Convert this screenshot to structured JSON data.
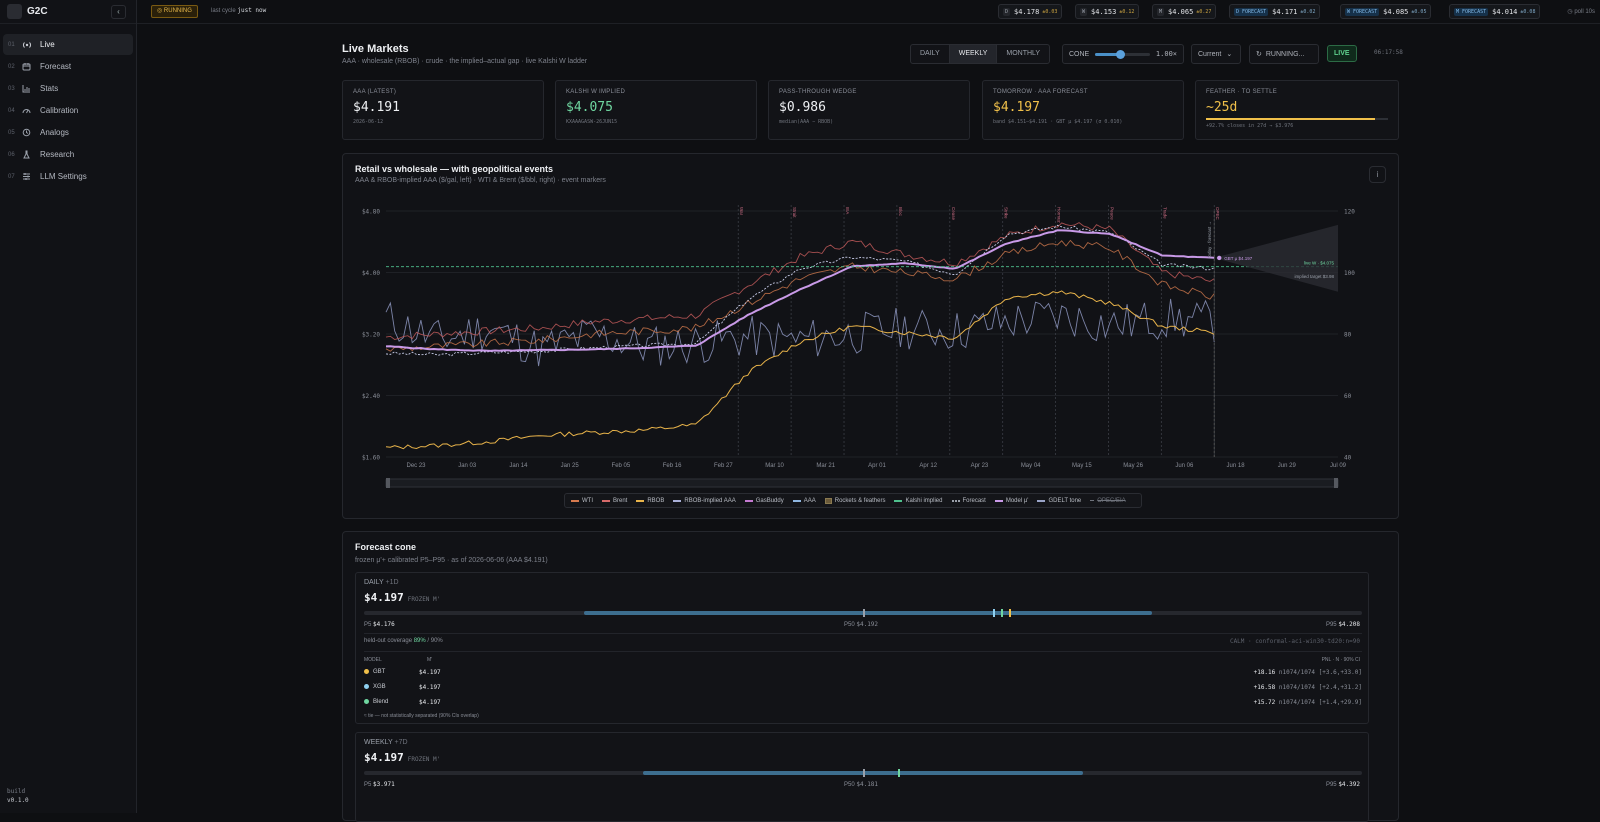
{
  "app": {
    "name": "G2C",
    "collapse_label": "‹",
    "build_label": "build",
    "version": "v0.1.0"
  },
  "nav": [
    {
      "num": "01",
      "label": "Live",
      "icon": "broadcast-icon"
    },
    {
      "num": "02",
      "label": "Forecast",
      "icon": "calendar-icon"
    },
    {
      "num": "03",
      "label": "Stats",
      "icon": "bar-chart-icon"
    },
    {
      "num": "04",
      "label": "Calibration",
      "icon": "gauge-icon"
    },
    {
      "num": "05",
      "label": "Analogs",
      "icon": "history-icon"
    },
    {
      "num": "06",
      "label": "Research",
      "icon": "flask-icon"
    },
    {
      "num": "07",
      "label": "LLM Settings",
      "icon": "sliders-icon"
    }
  ],
  "topbar": {
    "status": "RUNNING",
    "last_cycle_label": "last cycle",
    "last_cycle_value": "just now",
    "chips": [
      {
        "key": "D",
        "value": "$4.178",
        "delta": "±0.03"
      },
      {
        "key": "W",
        "value": "$4.153",
        "delta": "±0.12"
      },
      {
        "key": "M",
        "value": "$4.065",
        "delta": "±0.27"
      },
      {
        "key": "D FORECAST",
        "value": "$4.171",
        "delta": "±0.02"
      },
      {
        "key": "W FORECAST",
        "value": "$4.085",
        "delta": "±0.05"
      },
      {
        "key": "M FORECAST",
        "value": "$4.014",
        "delta": "±0.08"
      }
    ],
    "poll": "poll 10s"
  },
  "header": {
    "title": "Live Markets",
    "subtitle": "AAA · wholesale (RBOB) · crude · the implied–actual gap · live Kalshi W ladder",
    "modes": [
      "DAILY",
      "WEEKLY",
      "MONTHLY"
    ],
    "cone_label": "CONE",
    "cone_value": "1.00×",
    "cone_level": 0.45,
    "period": "Current",
    "run_button": "RUNNING...",
    "live": "LIVE",
    "clock": "06:17:58"
  },
  "cards": [
    {
      "label": "AAA (LATEST)",
      "value": "$4.191",
      "small": "2026-06-12",
      "color": "#eef0f3"
    },
    {
      "label": "KALSHI W IMPLIED",
      "value": "$4.075",
      "small": "KXAAAGASW-26JUN15",
      "color": "#6fd6a0"
    },
    {
      "label": "PASS-THROUGH WEDGE",
      "value": "$0.986",
      "small": "median(AAA − RBOB)",
      "color": "#eef0f3"
    },
    {
      "label": "TOMORROW · AAA FORECAST",
      "value": "$4.197",
      "small": "band $4.151–$4.191 · GBT μ $4.197 (σ 0.010)",
      "color": "#f0c04a"
    },
    {
      "label": "FEATHER · TO SETTLE",
      "value": "~25d",
      "small": "+92.7% closes in 27d → $3.976",
      "color": "#f0c04a",
      "progress": 0.927
    }
  ],
  "chart": {
    "title": "Retail vs wholesale — with geopolitical events",
    "subtitle": "AAA & RBOB-implied AAA ($/gal, left) · WTI & Brent ($/bbl, right) · event markers",
    "info_label": "i",
    "annot_forecast": "GBT μ $4.197",
    "annot_kalshi": "live W · $4.075",
    "annot_implied": "implied target $3.98",
    "annot_today": "today · forecast →",
    "legend": [
      {
        "label": "WTI",
        "color": "#d77a4e",
        "style": "solid"
      },
      {
        "label": "Brent",
        "color": "#d66a6a",
        "style": "solid"
      },
      {
        "label": "RBOB",
        "color": "#e8b34a",
        "style": "solid"
      },
      {
        "label": "RBOB-implied AAA",
        "color": "#aab0d8",
        "style": "dashed"
      },
      {
        "label": "GasBuddy",
        "color": "#c47ad1",
        "style": "solid"
      },
      {
        "label": "AAA",
        "color": "#8fb6e0",
        "style": "solid"
      },
      {
        "label": "Rockets & feathers",
        "color": "#6b5a3a",
        "style": "box"
      },
      {
        "label": "Kalshi implied",
        "color": "#4fc08d",
        "style": "dashed"
      },
      {
        "label": "Forecast",
        "color": "#9aa0aa",
        "style": "dotted"
      },
      {
        "label": "Model μ'",
        "color": "#c99ae8",
        "style": "dashed"
      },
      {
        "label": "GDELT tone",
        "color": "#9aa4c8",
        "style": "solid"
      },
      {
        "label": "OPEC/EIA",
        "color": "#6f737c",
        "style": "strike"
      }
    ]
  },
  "chart_data": {
    "type": "line",
    "title": "Retail vs wholesale — with geopolitical events",
    "xlabel": "",
    "ylabel": "",
    "x_ticks": [
      "Dec 23",
      "Jan 03",
      "Jan 14",
      "Jan 25",
      "Feb 05",
      "Feb 16",
      "Feb 27",
      "Mar 10",
      "Mar 21",
      "Apr 01",
      "Apr 12",
      "Apr 23",
      "May 04",
      "May 15",
      "May 26",
      "Jun 06",
      "Jun 18",
      "Jun 29",
      "Jul 09"
    ],
    "y_left_ticks": [
      "$4.80",
      "$4.00",
      "$3.20",
      "$2.40",
      "$1.60"
    ],
    "y_left_range": [
      1.6,
      4.8
    ],
    "y_right_ticks": [
      "120",
      "100",
      "80",
      "60",
      "40"
    ],
    "y_right_range": [
      40,
      120
    ],
    "event_labels": [
      "War",
      "Strait",
      "IEA",
      "Bloc",
      "Cease",
      "Strike",
      "Hormuz",
      "Peace",
      "Trade",
      "OPEC"
    ],
    "x_index": [
      0,
      12,
      24,
      36,
      48,
      60,
      72,
      84,
      96,
      108,
      120,
      132,
      144,
      156,
      168,
      180,
      188
    ],
    "series": [
      {
        "name": "AAA",
        "values": [
          3.04,
          3.0,
          2.98,
          2.99,
          3.0,
          3.02,
          3.05,
          3.45,
          3.78,
          4.08,
          4.12,
          4.05,
          4.38,
          4.55,
          4.5,
          4.22,
          4.19
        ]
      },
      {
        "name": "RBOB-implied AAA",
        "values": [
          2.95,
          2.93,
          2.96,
          2.98,
          3.02,
          3.05,
          3.08,
          3.65,
          4.05,
          4.2,
          4.15,
          3.98,
          4.5,
          4.6,
          4.52,
          4.1,
          4.05
        ]
      },
      {
        "name": "RBOB",
        "values": [
          1.72,
          1.75,
          1.8,
          1.88,
          1.92,
          1.95,
          2.02,
          2.7,
          3.1,
          3.3,
          3.22,
          3.15,
          3.68,
          3.75,
          3.6,
          3.3,
          3.22
        ]
      },
      {
        "name": "WTI",
        "values": [
          75,
          76,
          77,
          78,
          80,
          81,
          82,
          90,
          98,
          102,
          100,
          98,
          106,
          110,
          108,
          96,
          92
        ]
      },
      {
        "name": "Brent",
        "values": [
          79,
          80,
          81,
          82,
          84,
          85,
          86,
          96,
          105,
          110,
          106,
          103,
          112,
          116,
          114,
          100,
          97
        ]
      },
      {
        "name": "GDELT tone",
        "values": [
          85,
          78,
          82,
          75,
          80,
          76,
          77,
          79,
          78,
          80,
          82,
          81,
          84,
          86,
          83,
          85,
          84
        ]
      }
    ]
  },
  "cone": {
    "title": "Forecast cone",
    "subtitle": "frozen μ'+ calibrated P5–P95 · as of 2026-06-06 (AAA $4.191)",
    "frozen_label": "FROZEN M'",
    "daily": {
      "label": "DAILY",
      "horizon": "+1D",
      "value": "$4.197",
      "p5_label": "P5",
      "p5": "$4.176",
      "p50_label": "P50",
      "p50": "$4.192",
      "p95_label": "P95",
      "p95": "$4.208",
      "band": [
        0.22,
        0.79
      ],
      "ticks": [
        {
          "pos": 0.5,
          "color": "#9aa0aa"
        },
        {
          "pos": 0.63,
          "color": "#8fd0f0"
        },
        {
          "pos": 0.638,
          "color": "#6fd6a0"
        },
        {
          "pos": 0.646,
          "color": "#f0c04a"
        }
      ],
      "coverage_label": "held-out coverage",
      "coverage": "89%",
      "coverage_target": "/ 90%",
      "calib": "CALM · conformal-aci-win30-td20:n=90",
      "model_header": "MODEL",
      "mu_header": "M'",
      "pnl_header": "PNL · N · 90% CI",
      "models": [
        {
          "name": "GBT",
          "color": "#f0c04a",
          "value": "$4.197",
          "pnl": "+18.16",
          "detail": "n1074/1074 [+3.6,+33.0]"
        },
        {
          "name": "XGB",
          "color": "#8fd0f0",
          "value": "$4.197",
          "pnl": "+16.58",
          "detail": "n1074/1074 [+2.4,+31.2]"
        },
        {
          "name": "Blend",
          "color": "#6fd6a0",
          "value": "$4.197",
          "pnl": "+15.72",
          "detail": "n1074/1074 [+1.4,+29.9]"
        }
      ],
      "note": "≈ tie — not statistically separated (90% CIs overlap)"
    },
    "weekly": {
      "label": "WEEKLY",
      "horizon": "+7D",
      "value": "$4.197",
      "p5_label": "P5",
      "p5": "$3.971",
      "p50_label": "P50",
      "p50": "$4.181",
      "p95_label": "P95",
      "p95": "$4.392",
      "band": [
        0.28,
        0.72
      ],
      "ticks": [
        {
          "pos": 0.5,
          "color": "#9aa0aa"
        },
        {
          "pos": 0.535,
          "color": "#6fd6a0"
        }
      ]
    }
  }
}
